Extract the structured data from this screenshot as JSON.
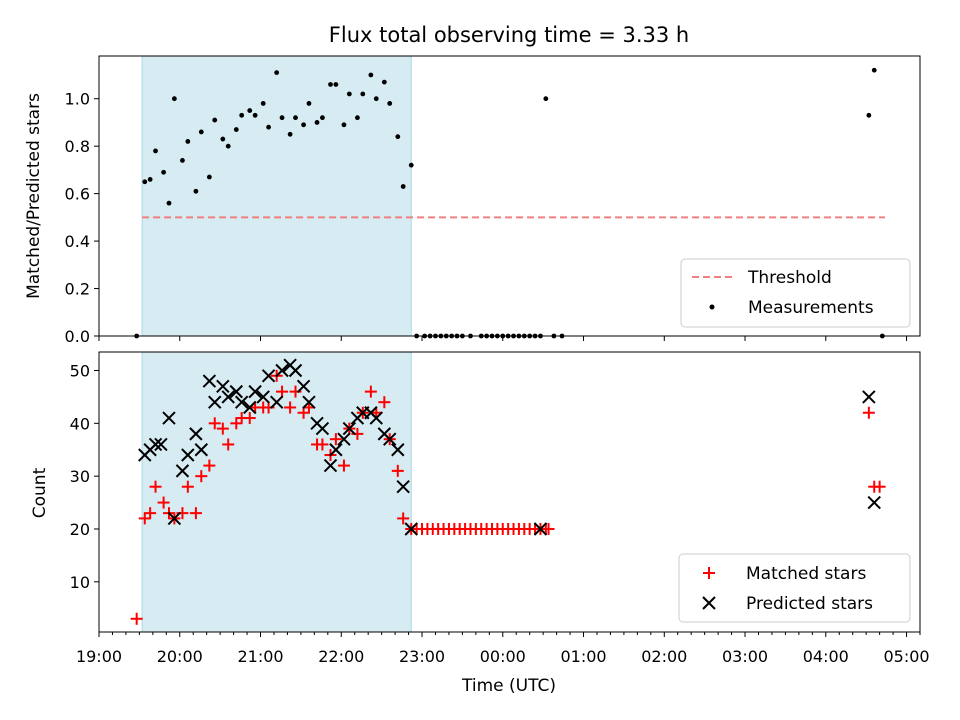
{
  "chart_data": [
    {
      "type": "scatter",
      "title": "Flux total observing time = 3.33 h",
      "xlabel": "",
      "ylabel": "Matched/Predicted stars",
      "ylim": [
        0,
        1.18
      ],
      "yticks": [
        "0.0",
        "0.2",
        "0.4",
        "0.6",
        "0.8",
        "1.0"
      ],
      "xlim": [
        "19:00",
        "05:10"
      ],
      "shaded_interval": [
        "19:32",
        "22:52"
      ],
      "legend_position": "lower right",
      "threshold": {
        "name": "Threshold",
        "value": 0.5,
        "x": [
          "19:32",
          "04:44"
        ],
        "color": "#f08080",
        "style": "dashed"
      },
      "series": [
        {
          "name": "Measurements",
          "color": "#000000",
          "marker": "dot",
          "x": [
            "19:28",
            "19:34",
            "19:38",
            "19:42",
            "19:48",
            "19:52",
            "19:56",
            "20:02",
            "20:06",
            "20:12",
            "20:16",
            "20:22",
            "20:26",
            "20:32",
            "20:36",
            "20:42",
            "20:46",
            "20:52",
            "20:56",
            "21:02",
            "21:06",
            "21:12",
            "21:16",
            "21:22",
            "21:26",
            "21:32",
            "21:36",
            "21:42",
            "21:46",
            "21:52",
            "21:56",
            "22:02",
            "22:06",
            "22:12",
            "22:16",
            "22:22",
            "22:26",
            "22:32",
            "22:36",
            "22:42",
            "22:46",
            "22:52",
            "22:56",
            "23:02",
            "23:06",
            "23:10",
            "23:14",
            "23:18",
            "23:22",
            "23:26",
            "23:30",
            "23:36",
            "23:44",
            "23:48",
            "23:52",
            "23:56",
            "00:00",
            "00:04",
            "00:08",
            "00:12",
            "00:16",
            "00:20",
            "00:24",
            "00:28",
            "00:32",
            "00:38",
            "00:44",
            "04:32",
            "04:36",
            "04:42"
          ],
          "y": [
            0.0,
            0.65,
            0.66,
            0.78,
            0.69,
            0.56,
            1.0,
            0.74,
            0.82,
            0.61,
            0.86,
            0.67,
            0.91,
            0.83,
            0.8,
            0.87,
            0.93,
            0.95,
            0.93,
            0.98,
            0.88,
            1.11,
            0.92,
            0.85,
            0.92,
            0.89,
            0.98,
            0.9,
            0.92,
            1.06,
            1.06,
            0.89,
            1.02,
            0.92,
            1.02,
            1.1,
            1.0,
            1.07,
            0.98,
            0.84,
            0.63,
            0.72,
            0.0,
            0.0,
            0.0,
            0.0,
            0.0,
            0.0,
            0.0,
            0.0,
            0.0,
            0.0,
            0.0,
            0.0,
            0.0,
            0.0,
            0.0,
            0.0,
            0.0,
            0.0,
            0.0,
            0.0,
            0.0,
            0.0,
            1.0,
            0.0,
            0.0,
            0.93,
            1.12,
            0.0
          ]
        }
      ]
    },
    {
      "type": "scatter",
      "title": "",
      "xlabel": "Time (UTC)",
      "ylabel": "Count",
      "ylim": [
        0.5,
        53.5
      ],
      "yticks": [
        "10",
        "20",
        "30",
        "40",
        "50"
      ],
      "xticks": [
        "19:00",
        "20:00",
        "21:00",
        "22:00",
        "23:00",
        "00:00",
        "01:00",
        "02:00",
        "03:00",
        "04:00",
        "05:00"
      ],
      "xlim": [
        "19:00",
        "05:10"
      ],
      "shaded_interval": [
        "19:32",
        "22:52"
      ],
      "legend_position": "lower right",
      "series": [
        {
          "name": "Matched stars",
          "color": "#ff0000",
          "marker": "plus",
          "x": [
            "19:28",
            "19:34",
            "19:38",
            "19:42",
            "19:48",
            "19:52",
            "19:56",
            "20:02",
            "20:06",
            "20:12",
            "20:16",
            "20:22",
            "20:26",
            "20:32",
            "20:36",
            "20:42",
            "20:46",
            "20:52",
            "20:56",
            "21:02",
            "21:06",
            "21:12",
            "21:16",
            "21:22",
            "21:26",
            "21:32",
            "21:36",
            "21:42",
            "21:46",
            "21:52",
            "21:56",
            "22:02",
            "22:06",
            "22:12",
            "22:16",
            "22:22",
            "22:26",
            "22:32",
            "22:36",
            "22:42",
            "22:46",
            "22:52",
            "22:56",
            "23:00",
            "23:04",
            "23:08",
            "23:12",
            "23:16",
            "23:20",
            "23:24",
            "23:28",
            "23:32",
            "23:36",
            "23:40",
            "23:44",
            "23:48",
            "23:52",
            "23:56",
            "00:00",
            "00:04",
            "00:08",
            "00:12",
            "00:16",
            "00:20",
            "00:24",
            "00:28",
            "00:32",
            "00:34",
            "04:32",
            "04:36",
            "04:40"
          ],
          "y": [
            3,
            22,
            23,
            28,
            25,
            23,
            22,
            23,
            28,
            23,
            30,
            32,
            40,
            39,
            36,
            40,
            41,
            41,
            43,
            43,
            43,
            49,
            46,
            43,
            46,
            42,
            43,
            36,
            36,
            34,
            37,
            32,
            39,
            38,
            42,
            46,
            42,
            44,
            37,
            31,
            22,
            20,
            20,
            20,
            20,
            20,
            20,
            20,
            20,
            20,
            20,
            20,
            20,
            20,
            20,
            20,
            20,
            20,
            20,
            20,
            20,
            20,
            20,
            20,
            20,
            20,
            20,
            20,
            42,
            28,
            28
          ]
        },
        {
          "name": "Predicted stars",
          "color": "#000000",
          "marker": "x",
          "x": [
            "19:34",
            "19:38",
            "19:42",
            "19:46",
            "19:52",
            "19:56",
            "20:02",
            "20:06",
            "20:12",
            "20:16",
            "20:22",
            "20:26",
            "20:32",
            "20:36",
            "20:42",
            "20:46",
            "20:52",
            "20:56",
            "21:02",
            "21:06",
            "21:12",
            "21:16",
            "21:22",
            "21:26",
            "21:32",
            "21:36",
            "21:42",
            "21:46",
            "21:52",
            "21:56",
            "22:02",
            "22:06",
            "22:12",
            "22:16",
            "22:22",
            "22:26",
            "22:32",
            "22:36",
            "22:42",
            "22:46",
            "22:52",
            "00:28",
            "04:32",
            "04:36"
          ],
          "y": [
            34,
            35,
            36,
            36,
            41,
            22,
            31,
            34,
            38,
            35,
            48,
            44,
            47,
            45,
            46,
            44,
            43,
            46,
            45,
            49,
            44,
            50,
            51,
            50,
            47,
            44,
            40,
            39,
            32,
            35,
            37,
            39,
            41,
            42,
            42,
            41,
            38,
            37,
            35,
            28,
            20,
            20,
            45,
            25
          ]
        }
      ]
    }
  ]
}
